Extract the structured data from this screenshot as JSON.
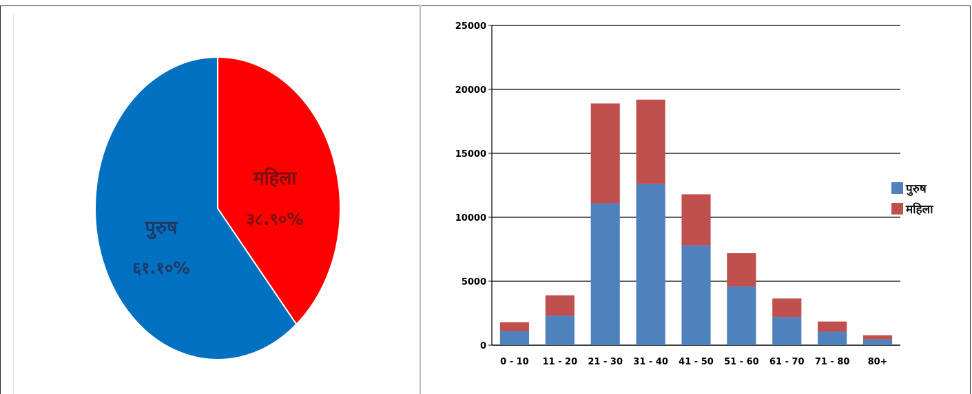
{
  "chart_data": [
    {
      "type": "pie",
      "slices": [
        {
          "name": "पुरुष",
          "label": "६१.१०%",
          "value": 61.1,
          "color": "#0070c0"
        },
        {
          "name": "महिला",
          "label": "३८.९०%",
          "value": 38.9,
          "color": "#ff0000"
        }
      ]
    },
    {
      "type": "bar",
      "stacked": true,
      "categories": [
        "0 - 10",
        "11 - 20",
        "21 - 30",
        "31 - 40",
        "41 - 50",
        "51 - 60",
        "61 - 70",
        "71 - 80",
        "80+"
      ],
      "series": [
        {
          "name": "पुरुष",
          "color": "#4f81bd",
          "values": [
            1100,
            2300,
            11100,
            12600,
            7800,
            4600,
            2200,
            1050,
            450
          ]
        },
        {
          "name": "महिला",
          "color": "#c0504d",
          "values": [
            700,
            1600,
            7800,
            6600,
            4000,
            2600,
            1450,
            800,
            330
          ]
        }
      ],
      "ylim": [
        0,
        25000
      ],
      "yticks": [
        "0",
        "5000",
        "10000",
        "15000",
        "20000",
        "25000"
      ],
      "grid": true,
      "legend_position": "right"
    }
  ]
}
